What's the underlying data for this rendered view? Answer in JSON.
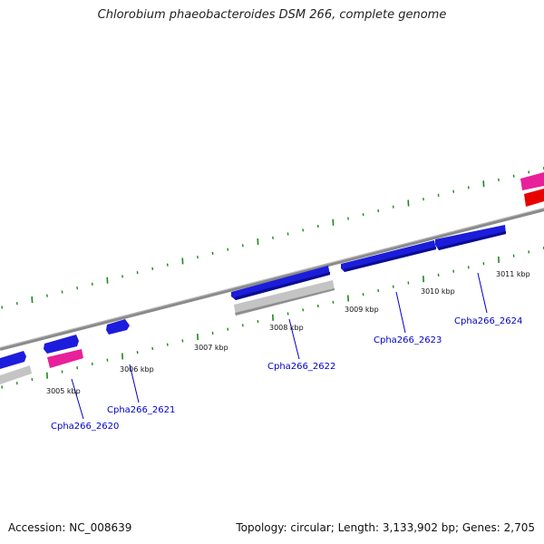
{
  "title": "Chlorobium phaeobacteroides DSM 266, complete genome",
  "accession": "Accession: NC_008639",
  "topology": "Topology: circular; Length: 3,133,902 bp; Genes: 2,705",
  "colors": {
    "backbone": "#8a8a8a",
    "tick": "#1a8a1a",
    "forward_gene": "#1c1cdc",
    "reverse_gene": "#ffffff",
    "pink_feature": "#e8209a",
    "red_feature": "#e80000",
    "gray_feature": "#c4c4c4",
    "label": "#0000cc"
  },
  "scale_labels": [
    "3005 kbp",
    "3006 kbp",
    "3007 kbp",
    "3008 kbp",
    "3009 kbp",
    "3010 kbp",
    "3011 kbp"
  ],
  "gene_labels": [
    "Cpha266_2620",
    "Cpha266_2621",
    "Cpha266_2622",
    "Cpha266_2623",
    "Cpha266_2624"
  ]
}
